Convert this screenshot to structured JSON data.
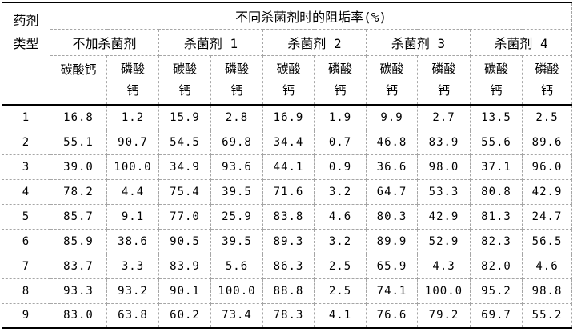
{
  "table": {
    "corner": {
      "line1": "药剂",
      "line2": "类型"
    },
    "main_header": "不同杀菌剂时的阻垢率(%)",
    "groups": [
      {
        "label": "不加杀菌剂"
      },
      {
        "label": "杀菌剂 1"
      },
      {
        "label": "杀菌剂 2"
      },
      {
        "label": "杀菌剂 3"
      },
      {
        "label": "杀菌剂 4"
      }
    ],
    "sub_columns": [
      {
        "lines": [
          "碳酸钙"
        ]
      },
      {
        "lines": [
          "磷酸",
          "钙"
        ]
      },
      {
        "lines": [
          "碳酸",
          "钙"
        ]
      },
      {
        "lines": [
          "磷酸",
          "钙"
        ]
      },
      {
        "lines": [
          "碳酸",
          "钙"
        ]
      },
      {
        "lines": [
          "磷酸",
          "钙"
        ]
      },
      {
        "lines": [
          "碳酸",
          "钙"
        ]
      },
      {
        "lines": [
          "磷酸",
          "钙"
        ]
      },
      {
        "lines": [
          "碳酸",
          "钙"
        ]
      },
      {
        "lines": [
          "磷酸",
          "钙"
        ]
      }
    ],
    "rows": [
      {
        "label": "1",
        "values": [
          "16.8",
          "1.2",
          "15.9",
          "2.8",
          "16.9",
          "1.9",
          "9.9",
          "2.7",
          "13.5",
          "2.5"
        ]
      },
      {
        "label": "2",
        "values": [
          "55.1",
          "90.7",
          "54.5",
          "69.8",
          "34.4",
          "0.7",
          "46.8",
          "83.9",
          "55.6",
          "89.6"
        ]
      },
      {
        "label": "3",
        "values": [
          "39.0",
          "100.0",
          "34.9",
          "93.6",
          "44.1",
          "0.9",
          "36.6",
          "98.0",
          "37.1",
          "96.0"
        ]
      },
      {
        "label": "4",
        "values": [
          "78.2",
          "4.4",
          "75.4",
          "39.5",
          "71.6",
          "3.2",
          "64.7",
          "53.3",
          "80.8",
          "42.9"
        ]
      },
      {
        "label": "5",
        "values": [
          "85.7",
          "9.1",
          "77.0",
          "25.9",
          "83.8",
          "4.6",
          "80.3",
          "42.9",
          "81.3",
          "24.7"
        ]
      },
      {
        "label": "6",
        "values": [
          "85.9",
          "38.6",
          "90.5",
          "39.5",
          "89.3",
          "3.2",
          "89.9",
          "52.9",
          "82.3",
          "56.5"
        ]
      },
      {
        "label": "7",
        "values": [
          "83.7",
          "3.3",
          "83.9",
          "5.6",
          "86.3",
          "2.5",
          "65.9",
          "4.3",
          "82.0",
          "4.6"
        ]
      },
      {
        "label": "8",
        "values": [
          "93.3",
          "93.2",
          "90.1",
          "100.0",
          "88.8",
          "2.5",
          "74.1",
          "100.0",
          "95.2",
          "98.8"
        ]
      },
      {
        "label": "9",
        "values": [
          "83.0",
          "63.8",
          "60.2",
          "73.4",
          "78.3",
          "4.1",
          "76.6",
          "79.2",
          "69.7",
          "55.2"
        ]
      }
    ],
    "colors": {
      "solid_border": "#000000",
      "dashed_border": "#a6a6a6",
      "background": "#ffffff",
      "text": "#000000"
    }
  }
}
